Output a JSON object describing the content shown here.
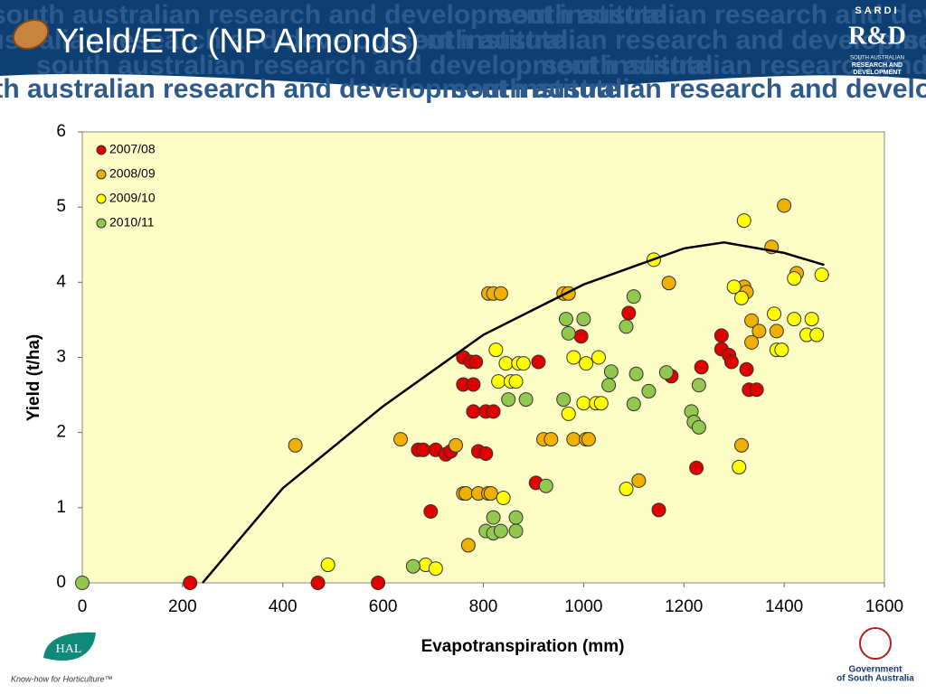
{
  "slide_title": "Yield/ETc (NP Almonds)",
  "banner_text": "south australian research and development institute",
  "logos": {
    "sardi": "SARDI",
    "rd": "R&D",
    "institute": [
      "SOUTH AUSTRALIAN",
      "RESEARCH AND",
      "DEVELOPMENT",
      "INSTITUTE"
    ],
    "hal": "HAL",
    "hal_tagline": "Know-how for Horticulture™",
    "government": [
      "Government",
      "of South Australia"
    ]
  },
  "chart_data": {
    "type": "scatter",
    "xlabel": "Evapotranspiration (mm)",
    "ylabel": "Yield (t/ha)",
    "xlim": [
      0,
      1600
    ],
    "xticks": [
      0,
      200,
      400,
      600,
      800,
      1000,
      1200,
      1400,
      1600
    ],
    "ylim": [
      0,
      6
    ],
    "yticks": [
      0,
      1,
      2,
      3,
      4,
      5,
      6
    ],
    "grid": false,
    "legend": "upper left",
    "background": "#fdfdc6",
    "series": [
      {
        "name": "2007/08",
        "color": "#e00000",
        "x": [
          215,
          470,
          590,
          695,
          670,
          680,
          705,
          725,
          735,
          760,
          760,
          775,
          780,
          785,
          780,
          790,
          805,
          805,
          820,
          905,
          910,
          995,
          1090,
          1150,
          1175,
          1225,
          1235,
          1275,
          1275,
          1290,
          1295,
          1325,
          1330,
          1345
        ],
        "y": [
          0,
          0,
          0,
          0.95,
          1.77,
          1.77,
          1.77,
          1.71,
          1.75,
          3.0,
          2.64,
          2.94,
          2.64,
          2.94,
          2.28,
          1.75,
          2.28,
          1.72,
          2.28,
          1.33,
          2.94,
          3.28,
          3.59,
          0.97,
          2.75,
          1.53,
          2.87,
          3.29,
          3.11,
          3.03,
          2.94,
          2.84,
          2.57,
          2.57
        ]
      },
      {
        "name": "2008/09",
        "color": "#f0b000",
        "x": [
          425,
          635,
          745,
          760,
          765,
          770,
          790,
          810,
          815,
          810,
          820,
          835,
          920,
          935,
          960,
          970,
          980,
          1005,
          1010,
          1170,
          1110,
          1320,
          1315,
          1325,
          1335,
          1335,
          1350,
          1375,
          1400,
          1425,
          1385
        ],
        "y": [
          1.83,
          1.91,
          1.83,
          1.19,
          1.19,
          0.5,
          1.19,
          1.19,
          1.19,
          3.85,
          3.85,
          3.85,
          1.91,
          1.91,
          3.85,
          3.85,
          1.91,
          1.91,
          1.91,
          3.99,
          1.36,
          3.94,
          1.83,
          3.87,
          3.49,
          3.2,
          3.35,
          4.47,
          5.02,
          4.12,
          3.35
        ]
      },
      {
        "name": "2009/10",
        "color": "#ffff00",
        "x": [
          490,
          685,
          705,
          825,
          830,
          840,
          845,
          855,
          865,
          870,
          880,
          970,
          980,
          1000,
          1005,
          1025,
          1030,
          1035,
          1085,
          1140,
          1310,
          1300,
          1315,
          1320,
          1380,
          1385,
          1395,
          1420,
          1420,
          1445,
          1455,
          1465,
          1475
        ],
        "y": [
          0.24,
          0.24,
          0.19,
          3.1,
          2.68,
          1.13,
          2.92,
          2.68,
          2.68,
          2.92,
          2.92,
          2.25,
          3.0,
          2.39,
          2.92,
          2.39,
          3.0,
          2.39,
          1.25,
          4.3,
          1.54,
          3.94,
          3.79,
          4.82,
          3.58,
          3.1,
          3.1,
          3.51,
          4.05,
          3.3,
          3.51,
          3.3,
          4.1
        ]
      },
      {
        "name": "2010/11",
        "color": "#92c84e",
        "x": [
          0,
          660,
          805,
          820,
          820,
          835,
          865,
          865,
          850,
          885,
          925,
          960,
          965,
          970,
          1000,
          1050,
          1055,
          1085,
          1100,
          1100,
          1105,
          1130,
          1165,
          1215,
          1220,
          1230,
          1230
        ],
        "y": [
          0,
          0.22,
          0.69,
          0.87,
          0.66,
          0.69,
          0.87,
          0.69,
          2.44,
          2.44,
          1.29,
          2.44,
          3.51,
          3.32,
          3.51,
          2.63,
          2.81,
          3.41,
          2.38,
          3.81,
          2.78,
          2.55,
          2.8,
          2.28,
          2.14,
          2.07,
          2.63
        ]
      }
    ],
    "trendline": {
      "color": "#000000",
      "x": [
        240,
        400,
        600,
        800,
        1000,
        1200,
        1280,
        1400,
        1480
      ],
      "y": [
        0,
        1.26,
        2.35,
        3.3,
        3.97,
        4.45,
        4.53,
        4.39,
        4.23
      ]
    }
  }
}
